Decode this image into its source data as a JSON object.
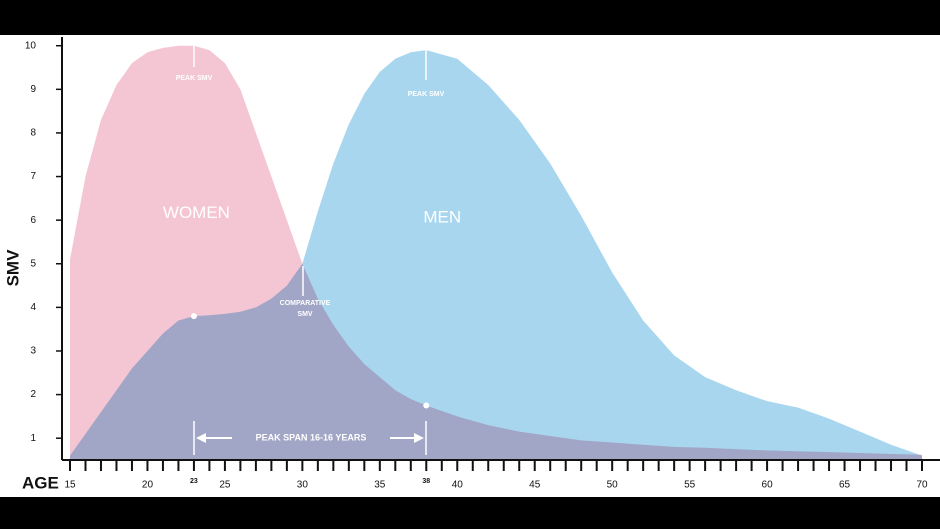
{
  "chart_data": {
    "type": "area",
    "y_label": "SMV",
    "x_label": "AGE",
    "x": [
      15,
      16,
      17,
      18,
      19,
      20,
      21,
      22,
      23,
      24,
      25,
      26,
      27,
      28,
      29,
      30,
      31,
      32,
      33,
      34,
      35,
      36,
      37,
      38,
      40,
      42,
      44,
      46,
      48,
      50,
      52,
      54,
      56,
      58,
      60,
      62,
      64,
      66,
      68,
      70
    ],
    "series": [
      {
        "name": "WOMEN",
        "color": "#f4c6d4",
        "values": [
          5.1,
          7.0,
          8.3,
          9.1,
          9.6,
          9.85,
          9.95,
          10,
          10,
          9.9,
          9.6,
          9.0,
          8.0,
          7.0,
          6.0,
          5.0,
          4.2,
          3.6,
          3.1,
          2.7,
          2.4,
          2.1,
          1.9,
          1.75,
          1.5,
          1.3,
          1.15,
          1.05,
          0.95,
          0.9,
          0.85,
          0.8,
          0.78,
          0.75,
          0.72,
          0.7,
          0.68,
          0.66,
          0.64,
          0.62
        ]
      },
      {
        "name": "MEN",
        "color": "#a9d6ef",
        "values": [
          0.6,
          1.1,
          1.6,
          2.1,
          2.6,
          3.0,
          3.4,
          3.7,
          3.8,
          3.82,
          3.85,
          3.9,
          4.0,
          4.2,
          4.5,
          5.0,
          6.2,
          7.3,
          8.2,
          8.9,
          9.4,
          9.7,
          9.85,
          9.9,
          9.7,
          9.1,
          8.3,
          7.3,
          6.1,
          4.8,
          3.7,
          2.9,
          2.4,
          2.1,
          1.85,
          1.7,
          1.45,
          1.15,
          0.85,
          0.6
        ]
      }
    ],
    "xlim": [
      15,
      70
    ],
    "ylim": [
      0.5,
      10.2
    ],
    "xticks": [
      15,
      20,
      23,
      25,
      30,
      35,
      38,
      40,
      45,
      50,
      55,
      60,
      65,
      70
    ],
    "yticks": [
      1,
      2,
      3,
      4,
      5,
      6,
      7,
      8,
      9,
      10
    ],
    "annotations": {
      "women_peak": "PEAK SMV",
      "men_peak": "PEAK SMV",
      "comparative": [
        "COMPARATIVE",
        "SMV"
      ],
      "span": "PEAK SPAN 16-16 YEARS"
    }
  }
}
